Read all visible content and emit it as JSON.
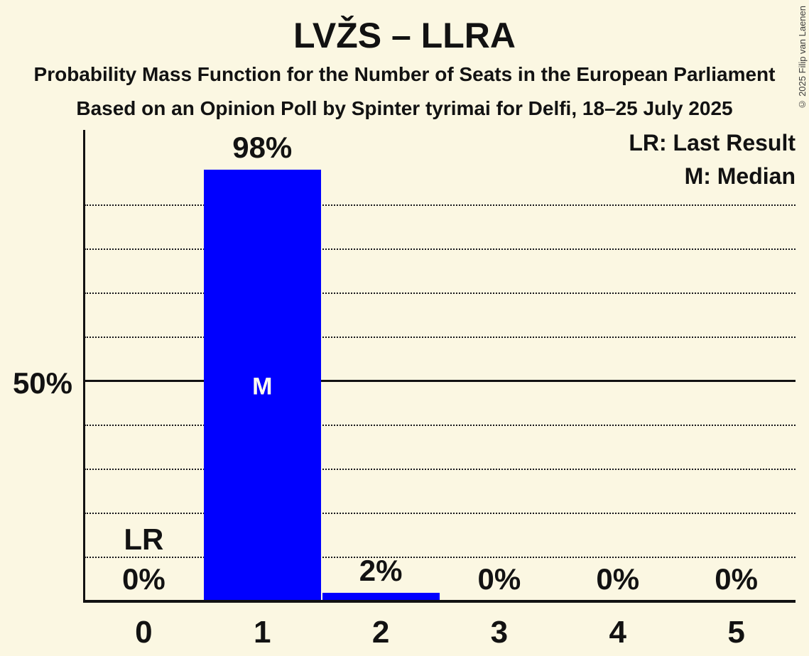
{
  "title": "LVŽS – LLRA",
  "subtitle1": "Probability Mass Function for the Number of Seats in the European Parliament",
  "subtitle2": "Based on an Opinion Poll by Spinter tyrimai for Delfi, 18–25 July 2025",
  "legend": {
    "last_result": "LR: Last Result",
    "median": "M: Median"
  },
  "copyright": "© 2025 Filip van Laenen",
  "y_axis_tick_label": "50%",
  "chart_data": {
    "type": "bar",
    "title": "LVŽS – LLRA",
    "xlabel": "Number of Seats in the European Parliament",
    "ylabel": "Probability Mass",
    "categories": [
      "0",
      "1",
      "2",
      "3",
      "4",
      "5"
    ],
    "values": [
      0,
      98,
      2,
      0,
      0,
      0
    ],
    "value_labels": [
      "0%",
      "98%",
      "2%",
      "0%",
      "0%",
      "0%"
    ],
    "ylim": [
      0,
      100
    ],
    "y_tick_labeled_pct": 50,
    "solid_line_pct": 50,
    "gridlines_pct": [
      10,
      20,
      30,
      40,
      60,
      70,
      80,
      90
    ],
    "grid": "dotted horizontal",
    "legend_position": "top-right",
    "bar_color": "#0000ff",
    "median_seat": "1",
    "median_marker": "M",
    "last_result_seat": "0",
    "last_result_marker": "LR"
  },
  "colors": {
    "background": "#fbf7e2",
    "text": "#121212",
    "bar": "#0000ff",
    "median_text": "#fffdf0"
  }
}
